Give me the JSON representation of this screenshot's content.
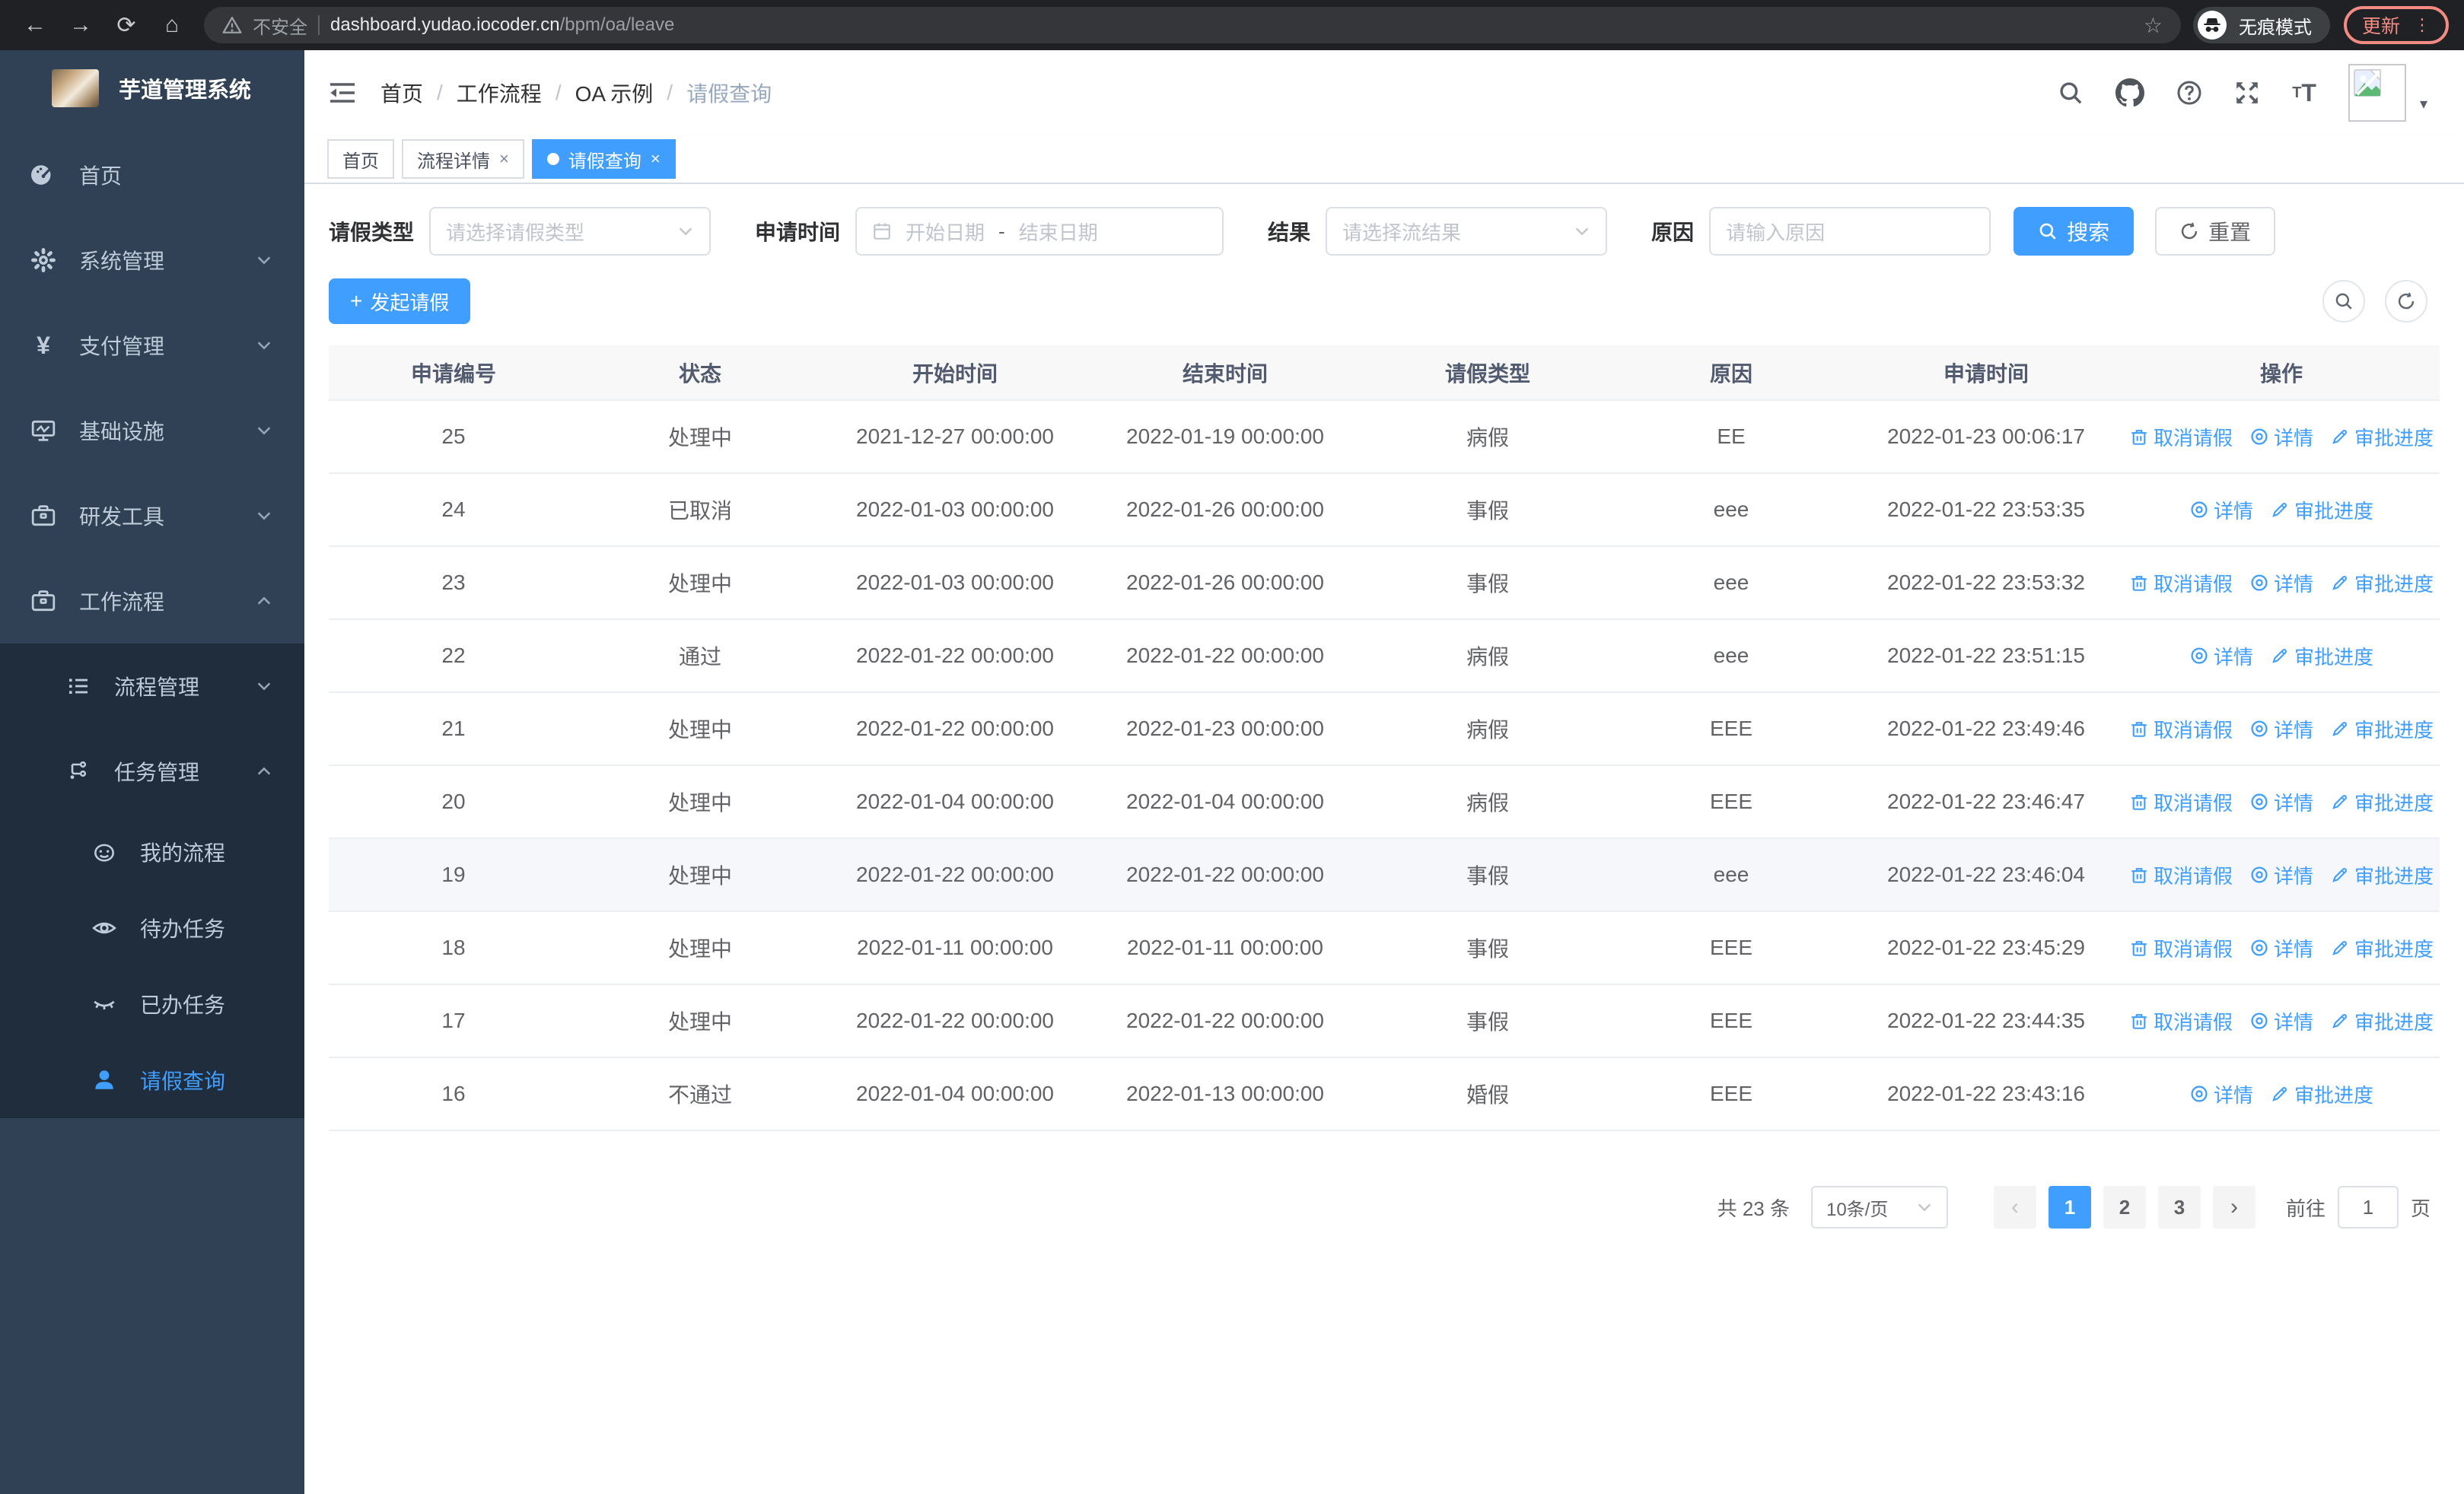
{
  "colors": {
    "accent": "#409eff",
    "chrome_bg": "#202124",
    "update_accent": "#f28b82",
    "sidebar_bg": "#304156",
    "submenu_bg": "#1f2d3d",
    "sidebar_text": "#bfcbd9",
    "table_header_bg": "#f8f8f9",
    "table_border": "#ebeef5",
    "highlight_row_bg": "#f5f7fa"
  },
  "glyphs": {
    "back": "←",
    "forward": "→",
    "reload": "⟳",
    "home": "⌂",
    "star": "☆",
    "menu_dots": "⋮",
    "caret_down": "▾",
    "close": "×",
    "plus": "+",
    "slash": "/",
    "dash": "-",
    "prev": "‹",
    "next": "›",
    "yen": "¥",
    "font_small": "T",
    "font_large": "T"
  },
  "browser": {
    "security_label": "不安全",
    "url_host": "dashboard.yudao.iocoder.cn",
    "url_path": "/bpm/oa/leave",
    "incognito_label": "无痕模式",
    "update_label": "更新"
  },
  "sidebar": {
    "title": "芋道管理系统",
    "items": [
      {
        "label": "首页",
        "icon": "dashboard-icon"
      },
      {
        "label": "系统管理",
        "icon": "gear-icon"
      },
      {
        "label": "支付管理",
        "icon": "yen-icon"
      },
      {
        "label": "基础设施",
        "icon": "monitor-icon"
      },
      {
        "label": "研发工具",
        "icon": "toolbox-icon"
      },
      {
        "label": "工作流程",
        "icon": "briefcase-icon"
      }
    ],
    "submenu": [
      {
        "label": "流程管理",
        "icon": "list-icon"
      },
      {
        "label": "任务管理",
        "icon": "workflow-icon"
      }
    ],
    "task_items": [
      {
        "label": "我的流程",
        "icon": "face-icon"
      },
      {
        "label": "待办任务",
        "icon": "eye-open-icon"
      },
      {
        "label": "已办任务",
        "icon": "eye-closed-icon"
      },
      {
        "label": "请假查询",
        "icon": "user-icon",
        "active": true
      }
    ]
  },
  "breadcrumb": {
    "separator": "/",
    "items": [
      "首页",
      "工作流程",
      "OA 示例",
      "请假查询"
    ]
  },
  "tabs": [
    {
      "label": "首页"
    },
    {
      "label": "流程详情",
      "closable": true
    },
    {
      "label": "请假查询",
      "closable": true,
      "active": true
    }
  ],
  "filters": {
    "leave_type_label": "请假类型",
    "leave_type_placeholder": "请选择请假类型",
    "apply_time_label": "申请时间",
    "start_date_placeholder": "开始日期",
    "range_separator": "-",
    "end_date_placeholder": "结束日期",
    "result_label": "结果",
    "result_placeholder": "请选择流结果",
    "reason_label": "原因",
    "reason_placeholder": "请输入原因",
    "search_label": "搜索",
    "reset_label": "重置"
  },
  "toolbar": {
    "create_label": "发起请假"
  },
  "table": {
    "headers": [
      "申请编号",
      "状态",
      "开始时间",
      "结束时间",
      "请假类型",
      "原因",
      "申请时间",
      "操作"
    ],
    "action_labels": {
      "cancel": "取消请假",
      "detail": "详情",
      "progress": "审批进度"
    },
    "rows": [
      {
        "id": "25",
        "status": "处理中",
        "start_time": "2021-12-27 00:00:00",
        "end_time": "2022-01-19 00:00:00",
        "leave_type": "病假",
        "reason": "EE",
        "apply_time": "2022-01-23 00:06:17",
        "actions": [
          "cancel",
          "detail",
          "progress"
        ]
      },
      {
        "id": "24",
        "status": "已取消",
        "start_time": "2022-01-03 00:00:00",
        "end_time": "2022-01-26 00:00:00",
        "leave_type": "事假",
        "reason": "eee",
        "apply_time": "2022-01-22 23:53:35",
        "actions": [
          "detail",
          "progress"
        ]
      },
      {
        "id": "23",
        "status": "处理中",
        "start_time": "2022-01-03 00:00:00",
        "end_time": "2022-01-26 00:00:00",
        "leave_type": "事假",
        "reason": "eee",
        "apply_time": "2022-01-22 23:53:32",
        "actions": [
          "cancel",
          "detail",
          "progress"
        ]
      },
      {
        "id": "22",
        "status": "通过",
        "start_time": "2022-01-22 00:00:00",
        "end_time": "2022-01-22 00:00:00",
        "leave_type": "病假",
        "reason": "eee",
        "apply_time": "2022-01-22 23:51:15",
        "actions": [
          "detail",
          "progress"
        ]
      },
      {
        "id": "21",
        "status": "处理中",
        "start_time": "2022-01-22 00:00:00",
        "end_time": "2022-01-23 00:00:00",
        "leave_type": "病假",
        "reason": "EEE",
        "apply_time": "2022-01-22 23:49:46",
        "actions": [
          "cancel",
          "detail",
          "progress"
        ]
      },
      {
        "id": "20",
        "status": "处理中",
        "start_time": "2022-01-04 00:00:00",
        "end_time": "2022-01-04 00:00:00",
        "leave_type": "病假",
        "reason": "EEE",
        "apply_time": "2022-01-22 23:46:47",
        "actions": [
          "cancel",
          "detail",
          "progress"
        ]
      },
      {
        "id": "19",
        "status": "处理中",
        "start_time": "2022-01-22 00:00:00",
        "end_time": "2022-01-22 00:00:00",
        "leave_type": "事假",
        "reason": "eee",
        "apply_time": "2022-01-22 23:46:04",
        "actions": [
          "cancel",
          "detail",
          "progress"
        ],
        "highlighted": true
      },
      {
        "id": "18",
        "status": "处理中",
        "start_time": "2022-01-11 00:00:00",
        "end_time": "2022-01-11 00:00:00",
        "leave_type": "事假",
        "reason": "EEE",
        "apply_time": "2022-01-22 23:45:29",
        "actions": [
          "cancel",
          "detail",
          "progress"
        ]
      },
      {
        "id": "17",
        "status": "处理中",
        "start_time": "2022-01-22 00:00:00",
        "end_time": "2022-01-22 00:00:00",
        "leave_type": "事假",
        "reason": "EEE",
        "apply_time": "2022-01-22 23:44:35",
        "actions": [
          "cancel",
          "detail",
          "progress"
        ]
      },
      {
        "id": "16",
        "status": "不通过",
        "start_time": "2022-01-04 00:00:00",
        "end_time": "2022-01-13 00:00:00",
        "leave_type": "婚假",
        "reason": "EEE",
        "apply_time": "2022-01-22 23:43:16",
        "actions": [
          "detail",
          "progress"
        ]
      }
    ]
  },
  "pagination": {
    "total_label": "共 23 条",
    "page_size_label": "10条/页",
    "pages": [
      "1",
      "2",
      "3"
    ],
    "active_page": "1",
    "goto_label": "前往",
    "goto_value": "1",
    "page_unit_label": "页"
  }
}
